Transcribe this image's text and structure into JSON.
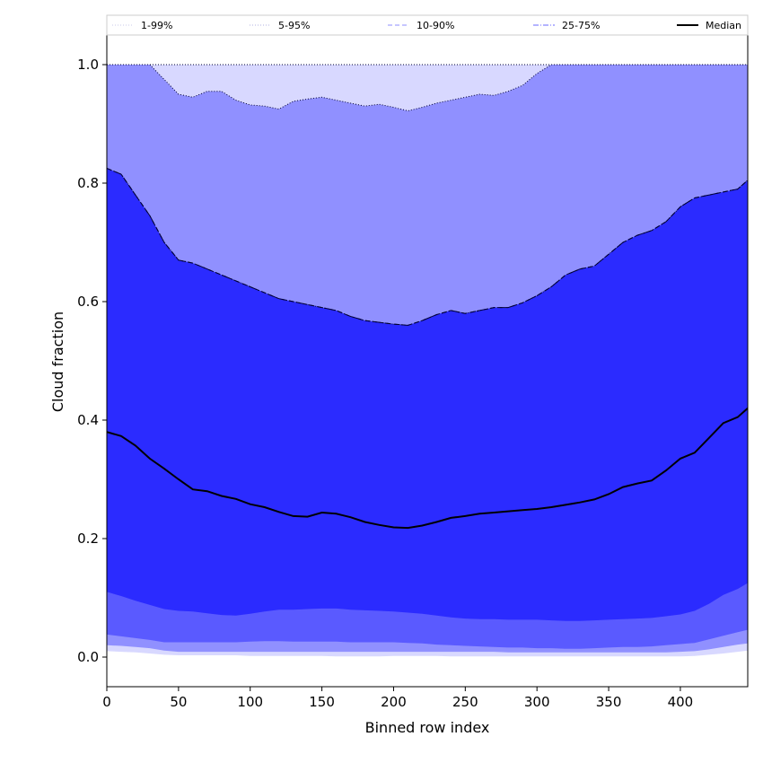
{
  "chart_data": {
    "type": "area",
    "title": "",
    "xlabel": "Binned row index",
    "ylabel": "Cloud fraction",
    "xlim": [
      0,
      447
    ],
    "ylim": [
      -0.05,
      1.05
    ],
    "xticks": [
      0,
      50,
      100,
      150,
      200,
      250,
      300,
      350,
      400
    ],
    "yticks": [
      0.0,
      0.2,
      0.4,
      0.6,
      0.8,
      1.0
    ],
    "ytick_labels": [
      "0.0",
      "0.2",
      "0.4",
      "0.6",
      "0.8",
      "1.0"
    ],
    "grid": false,
    "legend_placement": "top, full width, single row",
    "x": [
      0,
      10,
      20,
      30,
      40,
      50,
      60,
      70,
      80,
      90,
      100,
      110,
      120,
      130,
      140,
      150,
      160,
      170,
      180,
      190,
      200,
      210,
      220,
      230,
      240,
      250,
      260,
      270,
      280,
      290,
      300,
      310,
      320,
      330,
      340,
      350,
      360,
      370,
      380,
      390,
      400,
      410,
      420,
      430,
      440,
      447
    ],
    "bands": [
      {
        "name": "1-99%",
        "color": "#d8d8ff",
        "line_style": "dotted",
        "lower": [
          0.01,
          0.009,
          0.008,
          0.006,
          0.004,
          0.003,
          0.003,
          0.003,
          0.003,
          0.003,
          0.002,
          0.002,
          0.002,
          0.002,
          0.002,
          0.002,
          0.001,
          0.001,
          0.001,
          0.001,
          0.002,
          0.002,
          0.002,
          0.002,
          0.001,
          0.001,
          0.001,
          0.001,
          0.001,
          0.001,
          0.001,
          0.001,
          0.001,
          0.001,
          0.001,
          0.001,
          0.001,
          0.001,
          0.001,
          0.001,
          0.001,
          0.002,
          0.004,
          0.006,
          0.009,
          0.011
        ],
        "upper": [
          1.0,
          1.0,
          1.0,
          1.0,
          1.0,
          1.0,
          1.0,
          1.0,
          1.0,
          1.0,
          1.0,
          1.0,
          1.0,
          1.0,
          1.0,
          1.0,
          1.0,
          1.0,
          1.0,
          1.0,
          1.0,
          1.0,
          1.0,
          1.0,
          1.0,
          1.0,
          1.0,
          1.0,
          1.0,
          1.0,
          1.0,
          1.0,
          1.0,
          1.0,
          1.0,
          1.0,
          1.0,
          1.0,
          1.0,
          1.0,
          1.0,
          1.0,
          1.0,
          1.0,
          1.0,
          1.0
        ]
      },
      {
        "name": "5-95%",
        "color": "#9090ff",
        "line_style": "dotted",
        "lower": [
          0.02,
          0.019,
          0.017,
          0.015,
          0.011,
          0.009,
          0.009,
          0.009,
          0.009,
          0.009,
          0.009,
          0.009,
          0.009,
          0.009,
          0.009,
          0.009,
          0.009,
          0.009,
          0.009,
          0.009,
          0.009,
          0.009,
          0.009,
          0.009,
          0.009,
          0.009,
          0.009,
          0.009,
          0.008,
          0.008,
          0.008,
          0.008,
          0.008,
          0.008,
          0.008,
          0.008,
          0.008,
          0.008,
          0.008,
          0.008,
          0.009,
          0.01,
          0.013,
          0.017,
          0.021,
          0.023
        ],
        "upper": [
          1.0,
          1.0,
          1.0,
          1.0,
          0.975,
          0.95,
          0.945,
          0.955,
          0.955,
          0.94,
          0.932,
          0.93,
          0.925,
          0.938,
          0.942,
          0.945,
          0.94,
          0.935,
          0.93,
          0.933,
          0.928,
          0.922,
          0.928,
          0.935,
          0.94,
          0.945,
          0.95,
          0.948,
          0.955,
          0.965,
          0.985,
          1.0,
          1.0,
          1.0,
          1.0,
          1.0,
          1.0,
          1.0,
          1.0,
          1.0,
          1.0,
          1.0,
          1.0,
          1.0,
          1.0,
          1.0
        ]
      },
      {
        "name": "10-90%",
        "color": "#5a5aff",
        "line_style": "dashed",
        "lower": [
          0.038,
          0.035,
          0.032,
          0.029,
          0.025,
          0.025,
          0.025,
          0.025,
          0.025,
          0.025,
          0.026,
          0.027,
          0.027,
          0.026,
          0.026,
          0.026,
          0.026,
          0.025,
          0.025,
          0.025,
          0.025,
          0.024,
          0.023,
          0.021,
          0.02,
          0.019,
          0.018,
          0.017,
          0.016,
          0.016,
          0.015,
          0.015,
          0.014,
          0.014,
          0.015,
          0.016,
          0.017,
          0.017,
          0.018,
          0.02,
          0.022,
          0.024,
          0.03,
          0.036,
          0.042,
          0.046
        ],
        "upper": [
          0.825,
          0.815,
          0.78,
          0.745,
          0.7,
          0.67,
          0.665,
          0.655,
          0.645,
          0.635,
          0.625,
          0.615,
          0.605,
          0.6,
          0.595,
          0.59,
          0.585,
          0.575,
          0.568,
          0.565,
          0.562,
          0.56,
          0.568,
          0.578,
          0.585,
          0.58,
          0.585,
          0.59,
          0.59,
          0.598,
          0.61,
          0.625,
          0.645,
          0.655,
          0.66,
          0.68,
          0.7,
          0.712,
          0.72,
          0.735,
          0.76,
          0.775,
          0.78,
          0.785,
          0.79,
          0.805
        ]
      },
      {
        "name": "25-75%",
        "color": "#2b2bff",
        "line_style": "dashdot",
        "lower": [
          0.11,
          0.103,
          0.095,
          0.088,
          0.081,
          0.078,
          0.077,
          0.074,
          0.071,
          0.07,
          0.073,
          0.077,
          0.08,
          0.08,
          0.081,
          0.082,
          0.082,
          0.08,
          0.079,
          0.078,
          0.077,
          0.075,
          0.073,
          0.07,
          0.067,
          0.065,
          0.064,
          0.064,
          0.063,
          0.063,
          0.063,
          0.062,
          0.061,
          0.061,
          0.062,
          0.063,
          0.064,
          0.065,
          0.066,
          0.069,
          0.072,
          0.078,
          0.09,
          0.105,
          0.115,
          0.125
        ],
        "upper": [
          0.825,
          0.815,
          0.78,
          0.745,
          0.7,
          0.67,
          0.665,
          0.655,
          0.645,
          0.635,
          0.625,
          0.615,
          0.605,
          0.6,
          0.595,
          0.59,
          0.585,
          0.575,
          0.568,
          0.565,
          0.562,
          0.56,
          0.568,
          0.578,
          0.585,
          0.58,
          0.585,
          0.59,
          0.59,
          0.598,
          0.61,
          0.625,
          0.645,
          0.655,
          0.66,
          0.68,
          0.7,
          0.712,
          0.72,
          0.735,
          0.76,
          0.775,
          0.78,
          0.785,
          0.79,
          0.805
        ]
      }
    ],
    "median": {
      "name": "Median",
      "color": "#000000",
      "values": [
        0.38,
        0.373,
        0.357,
        0.335,
        0.318,
        0.3,
        0.283,
        0.28,
        0.272,
        0.267,
        0.258,
        0.253,
        0.245,
        0.238,
        0.237,
        0.244,
        0.242,
        0.236,
        0.228,
        0.223,
        0.219,
        0.218,
        0.222,
        0.228,
        0.235,
        0.238,
        0.242,
        0.244,
        0.246,
        0.248,
        0.25,
        0.253,
        0.257,
        0.261,
        0.266,
        0.275,
        0.287,
        0.293,
        0.298,
        0.315,
        0.335,
        0.345,
        0.37,
        0.395,
        0.405,
        0.42
      ]
    }
  }
}
